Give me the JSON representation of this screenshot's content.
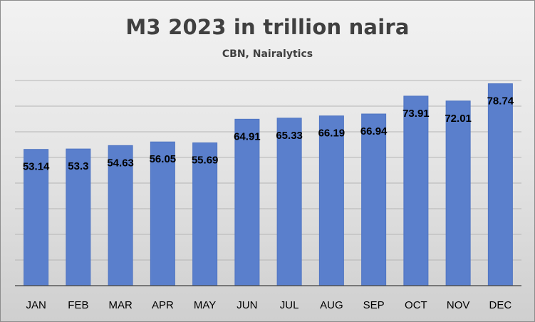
{
  "chart_data": {
    "type": "bar",
    "title": "M3 2023 in trillion naira",
    "subtitle": "CBN, Nairalytics",
    "categories": [
      "JAN",
      "FEB",
      "MAR",
      "APR",
      "MAY",
      "JUN",
      "JUL",
      "AUG",
      "SEP",
      "OCT",
      "NOV",
      "DEC"
    ],
    "values": [
      53.14,
      53.3,
      54.63,
      56.05,
      55.69,
      64.91,
      65.33,
      66.19,
      66.94,
      73.91,
      72.01,
      78.74
    ],
    "data_labels": [
      "53.14",
      "53.3",
      "54.63",
      "56.05",
      "55.69",
      "64.91",
      "65.33",
      "66.19",
      "66.94",
      "73.91",
      "72.01",
      "78.74"
    ],
    "xlabel": "",
    "ylabel": "",
    "ylim": [
      0,
      80
    ],
    "grid": true,
    "legend": "none",
    "colors": {
      "bar": "#5a7fcc",
      "gridline": "#b5b5b5",
      "title": "#404040"
    }
  }
}
